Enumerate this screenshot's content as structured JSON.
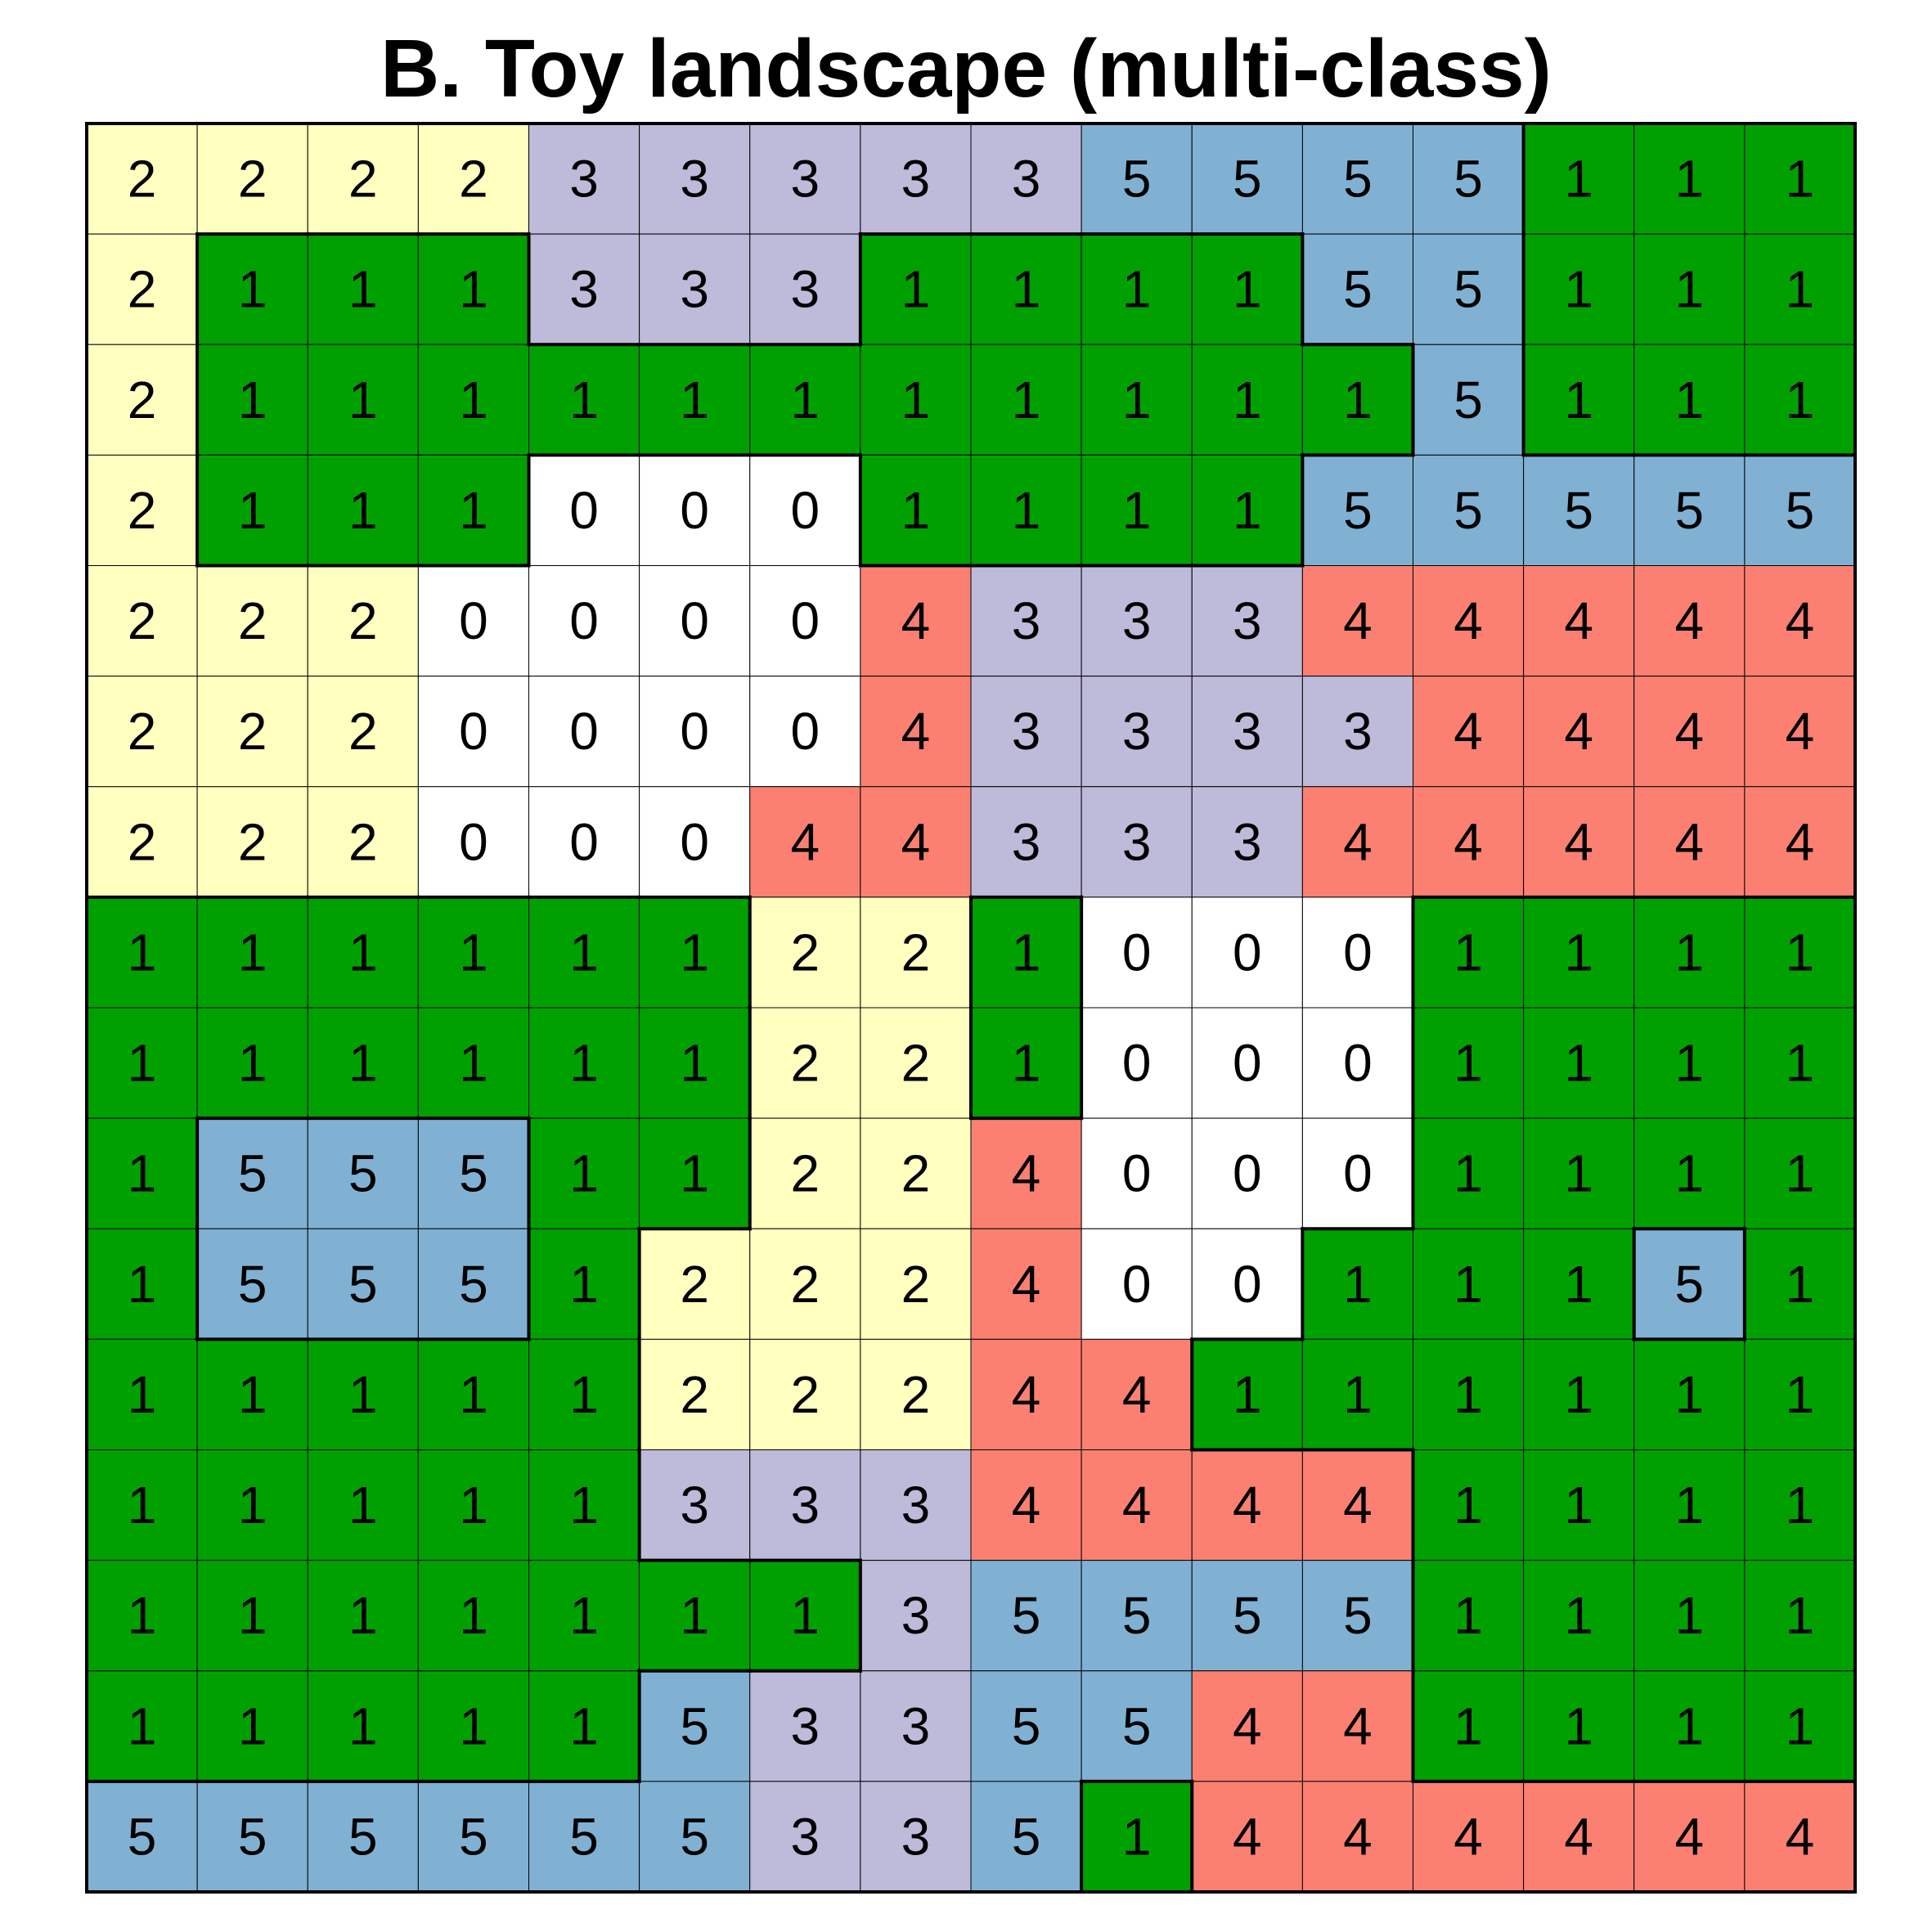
{
  "chart_data": {
    "type": "heatmap",
    "title": "B. Toy landscape (multi-class)",
    "xlabel": "",
    "ylabel": "",
    "grid": true,
    "legend": "none",
    "class_colors": {
      "0": "#ffffff",
      "1": "#00a000",
      "2": "#ffffc0",
      "3": "#bebada",
      "4": "#fb8072",
      "5": "#80b1d3"
    },
    "rows": [
      [
        2,
        2,
        2,
        2,
        3,
        3,
        3,
        3,
        3,
        5,
        5,
        5,
        5,
        1,
        1,
        1
      ],
      [
        2,
        1,
        1,
        1,
        3,
        3,
        3,
        1,
        1,
        1,
        1,
        5,
        5,
        1,
        1,
        1
      ],
      [
        2,
        1,
        1,
        1,
        1,
        1,
        1,
        1,
        1,
        1,
        1,
        1,
        5,
        1,
        1,
        1
      ],
      [
        2,
        1,
        1,
        1,
        0,
        0,
        0,
        1,
        1,
        1,
        1,
        5,
        5,
        5,
        5,
        5
      ],
      [
        2,
        2,
        2,
        0,
        0,
        0,
        0,
        4,
        3,
        3,
        3,
        4,
        4,
        4,
        4,
        4
      ],
      [
        2,
        2,
        2,
        0,
        0,
        0,
        0,
        4,
        3,
        3,
        3,
        3,
        4,
        4,
        4,
        4
      ],
      [
        2,
        2,
        2,
        0,
        0,
        0,
        4,
        4,
        3,
        3,
        3,
        4,
        4,
        4,
        4,
        4
      ],
      [
        1,
        1,
        1,
        1,
        1,
        1,
        2,
        2,
        1,
        0,
        0,
        0,
        1,
        1,
        1,
        1
      ],
      [
        1,
        1,
        1,
        1,
        1,
        1,
        2,
        2,
        1,
        0,
        0,
        0,
        1,
        1,
        1,
        1
      ],
      [
        1,
        5,
        5,
        5,
        1,
        1,
        2,
        2,
        4,
        0,
        0,
        0,
        1,
        1,
        1,
        1
      ],
      [
        1,
        5,
        5,
        5,
        1,
        2,
        2,
        2,
        4,
        0,
        0,
        1,
        1,
        1,
        5,
        1
      ],
      [
        1,
        1,
        1,
        1,
        1,
        2,
        2,
        2,
        4,
        4,
        1,
        1,
        1,
        1,
        1,
        1
      ],
      [
        1,
        1,
        1,
        1,
        1,
        3,
        3,
        3,
        4,
        4,
        4,
        4,
        1,
        1,
        1,
        1
      ],
      [
        1,
        1,
        1,
        1,
        1,
        1,
        1,
        3,
        5,
        5,
        5,
        5,
        1,
        1,
        1,
        1
      ],
      [
        1,
        1,
        1,
        1,
        1,
        5,
        3,
        3,
        5,
        5,
        4,
        4,
        1,
        1,
        1,
        1
      ],
      [
        5,
        5,
        5,
        5,
        5,
        5,
        3,
        3,
        5,
        1,
        4,
        4,
        4,
        4,
        4,
        4
      ]
    ],
    "highlight_class": 1
  }
}
